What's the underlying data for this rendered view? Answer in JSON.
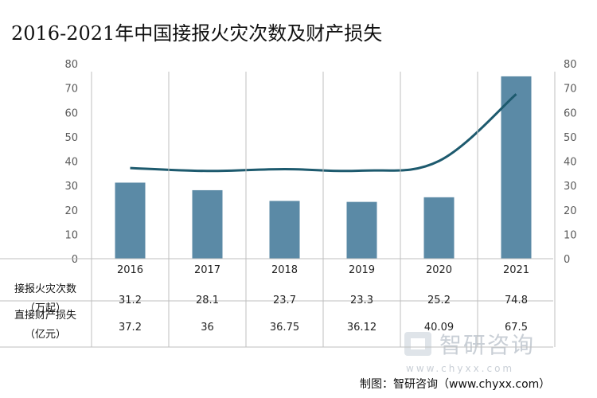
{
  "title": "2016-2021年中国接报火灾次数及财产损失",
  "chart_data": {
    "type": "bar+line",
    "title": "2016-2021年中国接报火灾次数及财产损失",
    "categories": [
      "2016",
      "2017",
      "2018",
      "2019",
      "2020",
      "2021"
    ],
    "series": [
      {
        "name": "接报火灾次数（万起）",
        "label_line1": "接报火灾次数",
        "label_line2": "（万起）",
        "type": "bar",
        "axis": "left",
        "color": "#5b8aa6",
        "values": [
          31.2,
          28.1,
          23.7,
          23.3,
          25.2,
          74.8
        ],
        "value_labels": [
          "31.2",
          "28.1",
          "23.7",
          "23.3",
          "25.2",
          "74.8"
        ]
      },
      {
        "name": "直接财产损失（亿元）",
        "label_line1": "直接财产损失",
        "label_line2": "（亿元）",
        "type": "line",
        "axis": "right",
        "color": "#1d5a6e",
        "values": [
          37.2,
          36,
          36.75,
          36.12,
          40.09,
          67.5
        ],
        "value_labels": [
          "37.2",
          "36",
          "36.75",
          "36.12",
          "40.09",
          "67.5"
        ]
      }
    ],
    "y_left": {
      "min": 0,
      "max": 80,
      "ticks": [
        0,
        10,
        20,
        30,
        40,
        50,
        60,
        70,
        80
      ]
    },
    "y_right": {
      "min": 0,
      "max": 80,
      "ticks": [
        0,
        10,
        20,
        30,
        40,
        50,
        60,
        70,
        80
      ]
    },
    "grid": false,
    "legend": "data-table"
  },
  "watermark": {
    "text": "智研咨询",
    "url": "www.chyxx.com"
  },
  "source": "制图：智研咨询（www.chyxx.com）"
}
